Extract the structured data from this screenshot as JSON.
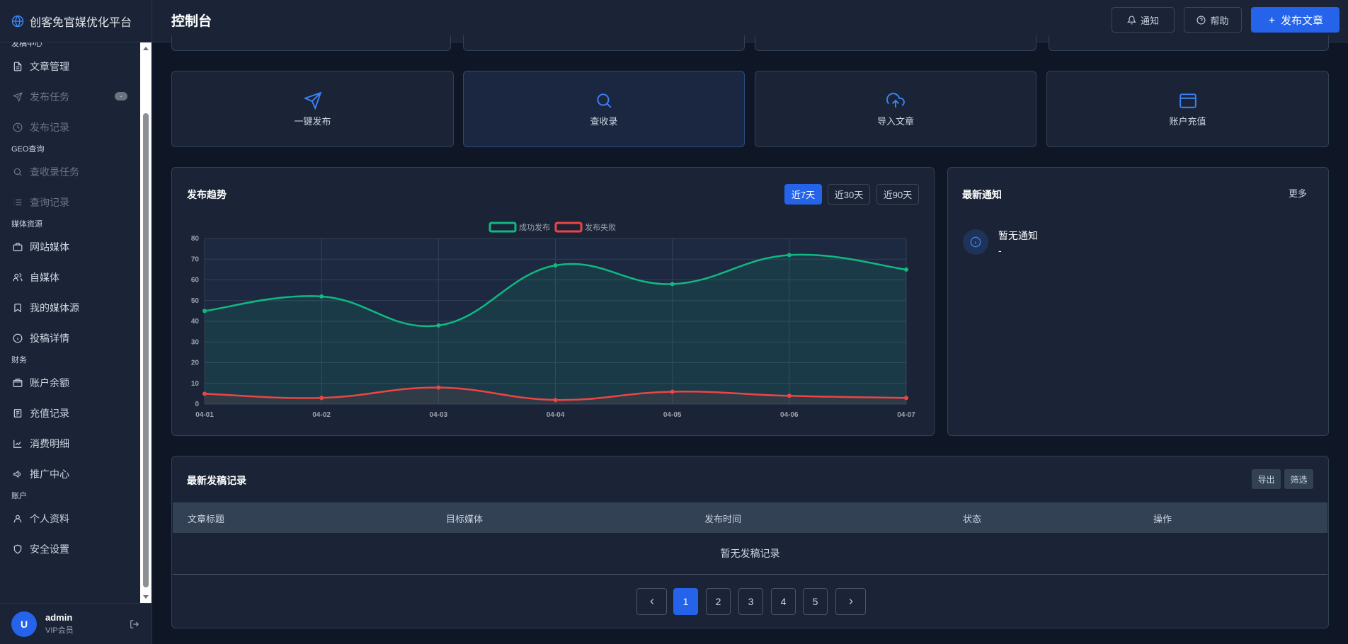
{
  "app": {
    "brand": "创客免官媒优化平台"
  },
  "sidebar": {
    "sections": [
      {
        "title": "发稿中心",
        "items": [
          {
            "label": "文章管理",
            "icon": "file-icon"
          },
          {
            "label": "发布任务",
            "icon": "send-icon",
            "badge": "-"
          },
          {
            "label": "发布记录",
            "icon": "clock-icon"
          }
        ]
      },
      {
        "title": "GEO查询",
        "items": [
          {
            "label": "查收录任务",
            "icon": "search-icon"
          },
          {
            "label": "查询记录",
            "icon": "list-icon"
          }
        ]
      },
      {
        "title": "媒体资源",
        "items": [
          {
            "label": "网站媒体",
            "icon": "briefcase-icon"
          },
          {
            "label": "自媒体",
            "icon": "users-icon"
          },
          {
            "label": "我的媒体源",
            "icon": "bookmark-icon"
          },
          {
            "label": "投稿详情",
            "icon": "info-icon"
          }
        ]
      },
      {
        "title": "财务",
        "items": [
          {
            "label": "账户余额",
            "icon": "wallet-icon"
          },
          {
            "label": "充值记录",
            "icon": "receipt-icon"
          },
          {
            "label": "消费明细",
            "icon": "chart-line-icon"
          },
          {
            "label": "推广中心",
            "icon": "megaphone-icon"
          }
        ]
      },
      {
        "title": "账户",
        "items": [
          {
            "label": "个人资料",
            "icon": "user-icon"
          },
          {
            "label": "安全设置",
            "icon": "shield-icon"
          }
        ]
      }
    ]
  },
  "user": {
    "initial": "U",
    "name": "admin",
    "role": "VIP会员"
  },
  "header": {
    "title": "控制台",
    "notify_label": "通知",
    "help_label": "帮助",
    "publish_label": "发布文章"
  },
  "quick_actions": [
    {
      "label": "一键发布",
      "icon": "send-icon"
    },
    {
      "label": "查收录",
      "icon": "search-icon"
    },
    {
      "label": "导入文章",
      "icon": "cloud-upload-icon"
    },
    {
      "label": "账户充值",
      "icon": "wallet-icon"
    }
  ],
  "trend": {
    "title": "发布趋势",
    "ranges": [
      "近7天",
      "近30天",
      "近90天"
    ],
    "selected_range": "近7天"
  },
  "chart_data": {
    "type": "area",
    "categories": [
      "04-01",
      "04-02",
      "04-03",
      "04-04",
      "04-05",
      "04-06",
      "04-07"
    ],
    "series": [
      {
        "name": "成功发布",
        "color": "#10b981",
        "values": [
          45,
          52,
          38,
          67,
          58,
          72,
          65
        ]
      },
      {
        "name": "发布失败",
        "color": "#ef4444",
        "values": [
          5,
          3,
          8,
          2,
          6,
          4,
          3
        ]
      }
    ],
    "ylim": [
      0,
      80
    ],
    "yticks": [
      0,
      10,
      20,
      30,
      40,
      50,
      60,
      70,
      80
    ],
    "grid": true,
    "legend": "top-center"
  },
  "notices": {
    "title": "最新通知",
    "more_label": "更多",
    "empty_title": "暂无通知",
    "empty_sub": "-"
  },
  "records": {
    "title": "最新发稿记录",
    "export_label": "导出",
    "filter_label": "筛选",
    "columns": [
      "文章标题",
      "目标媒体",
      "发布时间",
      "状态",
      "操作"
    ],
    "empty_text": "暂无发稿记录",
    "pages": [
      "1",
      "2",
      "3",
      "4",
      "5"
    ],
    "current_page": "1"
  },
  "colors": {
    "accent": "#2563eb",
    "success": "#10b981",
    "danger": "#ef4444"
  }
}
